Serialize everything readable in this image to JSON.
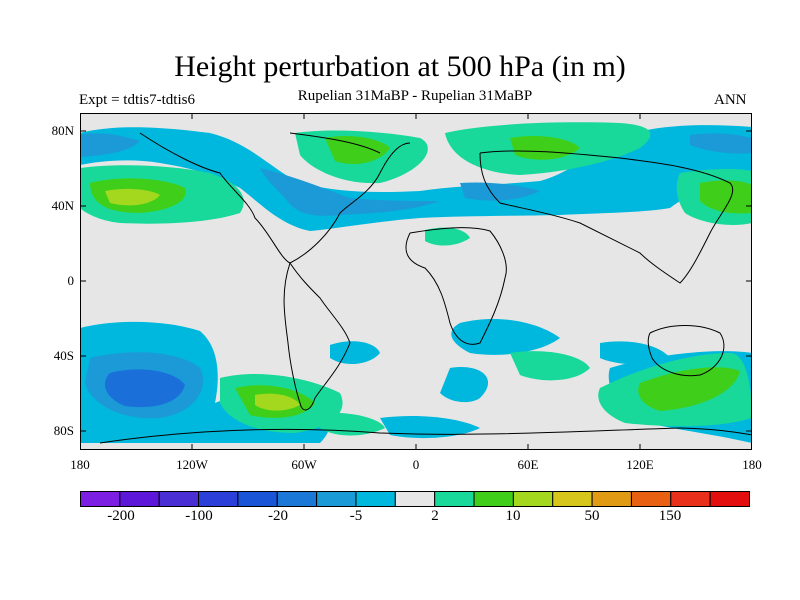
{
  "title": "Height perturbation at 500 hPa (in m)",
  "left_label": "Expt = tdtis7-tdtis6",
  "center_label": "Rupelian  31MaBP - Rupelian  31MaBP",
  "right_label": "ANN",
  "lat_ticks": [
    "80N",
    "40N",
    "0",
    "40S",
    "80S"
  ],
  "lon_ticks": [
    "180",
    "120W",
    "60W",
    "0",
    "60E",
    "120E",
    "180"
  ],
  "colorbar": {
    "colors": [
      "#7d1fe3",
      "#5c17d9",
      "#4a2fd4",
      "#2d3fd9",
      "#1a55d8",
      "#1b78d6",
      "#1a9ad7",
      "#00b8dd",
      "#e6e6e6",
      "#18d99a",
      "#3fcf1a",
      "#a3d81e",
      "#d6c61c",
      "#e09a14",
      "#e86012",
      "#e8301a",
      "#e30e0e"
    ],
    "labels": [
      "-200",
      "-100",
      "-20",
      "-5",
      "2",
      "10",
      "50",
      "150"
    ]
  }
}
